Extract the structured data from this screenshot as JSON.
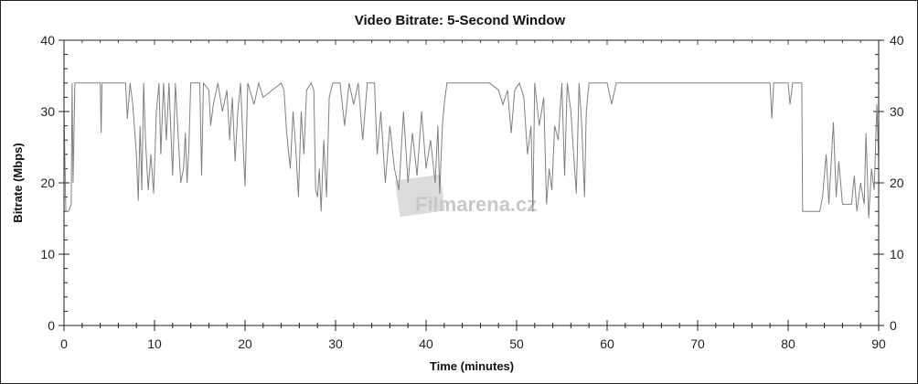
{
  "chart_data": {
    "type": "line",
    "title": "Video Bitrate: 5-Second Window",
    "xlabel": "Time (minutes)",
    "ylabel": "Bitrate (Mbps)",
    "xlim": [
      0,
      90
    ],
    "ylim": [
      0,
      40
    ],
    "xticks": [
      0,
      10,
      20,
      30,
      40,
      50,
      60,
      70,
      80,
      90
    ],
    "yticks": [
      0,
      10,
      20,
      30,
      40
    ],
    "right_axis_ticks": [
      0,
      10,
      20,
      30,
      40
    ],
    "grid": false,
    "line_color": "#808080",
    "watermark": "Filmarena.cz",
    "series": [
      {
        "x": [
          0,
          0.2,
          0.5,
          0.8,
          0.9,
          1,
          1.2,
          2,
          4,
          4.1,
          4.2,
          6.8,
          7,
          7.3,
          7.6,
          8,
          8.2,
          8.4,
          8.6,
          8.8,
          9,
          9.3,
          9.6,
          9.9,
          10.2,
          10.5,
          10.7,
          11,
          11.3,
          11.6,
          12,
          12.3,
          12.6,
          12.9,
          13.2,
          13.4,
          13.6,
          13.8,
          14,
          15,
          15.2,
          15.4,
          16,
          16.2,
          16.5,
          17,
          17.5,
          18,
          18.3,
          18.6,
          18.9,
          19.2,
          19.5,
          19.8,
          20,
          20.3,
          21,
          21.5,
          22,
          23,
          24,
          24.3,
          24.6,
          25,
          25.3,
          25.6,
          25.9,
          26.2,
          26.5,
          26.8,
          27.3,
          27.6,
          27.8,
          28,
          28.2,
          28.4,
          28.7,
          29,
          29.3,
          29.7,
          30.5,
          31,
          31.5,
          32,
          32.5,
          33,
          33.5,
          34.3,
          34.6,
          35,
          35.5,
          36,
          36.5,
          37,
          37.5,
          38,
          38.5,
          39,
          39.5,
          40,
          40.5,
          41,
          41.3,
          41.5,
          41.8,
          42,
          42.3,
          43,
          44,
          47,
          48,
          48.5,
          49,
          49.4,
          49.8,
          50.3,
          50.8,
          51.2,
          51.6,
          51.8,
          52,
          52.5,
          53,
          53.3,
          53.6,
          53.9,
          54.2,
          54.6,
          55,
          55.3,
          55.6,
          56,
          56.3,
          56.6,
          56.9,
          57.2,
          57.5,
          57.7,
          58,
          60,
          60.5,
          61,
          65,
          70,
          75,
          78,
          78.2,
          78.4,
          80,
          80.2,
          80.5,
          81.5,
          81.6,
          83.5,
          83.8,
          84.2,
          84.5,
          85,
          85.3,
          85.6,
          86,
          87,
          87.3,
          87.6,
          88,
          88.4,
          88.6,
          88.9,
          89.2,
          89.5,
          89.8,
          90
        ],
        "y": [
          30,
          16,
          16,
          17,
          34,
          20,
          34,
          34,
          34,
          27,
          34,
          34,
          29,
          34,
          31,
          24,
          17.5,
          28,
          19,
          34,
          26,
          19,
          24,
          18.5,
          30,
          34,
          24,
          34,
          26,
          34,
          21,
          34,
          27,
          20,
          22,
          27,
          20,
          25,
          34,
          34,
          21,
          34,
          33,
          28,
          31,
          34,
          30,
          33,
          26,
          32,
          23,
          30,
          34,
          25,
          19.5,
          34,
          31,
          34,
          32,
          33,
          34,
          33,
          27,
          22,
          30,
          25,
          18,
          30,
          24,
          33,
          34,
          33,
          19,
          18,
          22,
          16,
          26,
          18,
          32,
          34,
          34,
          28,
          34,
          31,
          34,
          26,
          34,
          34,
          24,
          30,
          20,
          28,
          22,
          19,
          30,
          20,
          27,
          21,
          30,
          22,
          26,
          20,
          28,
          18.5,
          28,
          31,
          34,
          34,
          34,
          34,
          33,
          31,
          33,
          27,
          33,
          34,
          32,
          24,
          28,
          16,
          34,
          28,
          32,
          17,
          22,
          19,
          28,
          26,
          34,
          21,
          34,
          30,
          24,
          18.5,
          34,
          28,
          18,
          30,
          34,
          34,
          31,
          34,
          34,
          34,
          34,
          34,
          29,
          34,
          34,
          31,
          34,
          34,
          16,
          16,
          18,
          24,
          17,
          28.5,
          18,
          23,
          17,
          17,
          21,
          16,
          20,
          17,
          27,
          15,
          22,
          19,
          31,
          23
        ]
      }
    ]
  }
}
